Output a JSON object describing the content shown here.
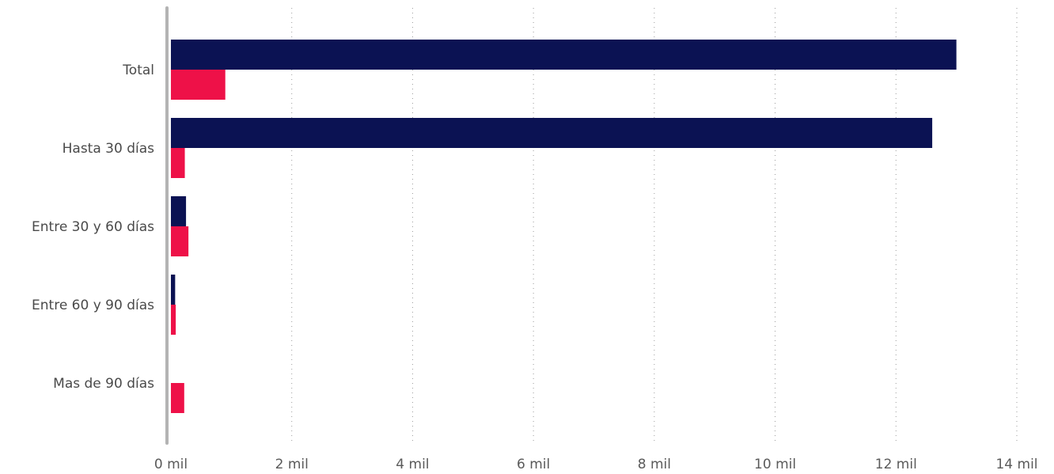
{
  "chart_data": {
    "type": "bar",
    "orientation": "horizontal",
    "title": "",
    "xlabel": "",
    "ylabel": "",
    "categories": [
      "Total",
      "Hasta 30 días",
      "Entre 30 y 60 días",
      "Entre 60 y 90 días",
      "Mas de 90 días"
    ],
    "series": [
      {
        "color": "#0b1253",
        "values": [
          13000,
          12600,
          250,
          70,
          0
        ]
      },
      {
        "color": "#ee1148",
        "values": [
          900,
          230,
          290,
          80,
          220
        ]
      }
    ],
    "xlim": [
      0,
      14000
    ],
    "x_ticks": [
      0,
      2000,
      4000,
      6000,
      8000,
      10000,
      12000,
      14000
    ],
    "x_tick_labels": [
      "0 mil",
      "2 mil",
      "4 mil",
      "6 mil",
      "8 mil",
      "10 mil",
      "12 mil",
      "14 mil"
    ],
    "grid": true,
    "grid_style": "dotted",
    "legend": "none"
  }
}
